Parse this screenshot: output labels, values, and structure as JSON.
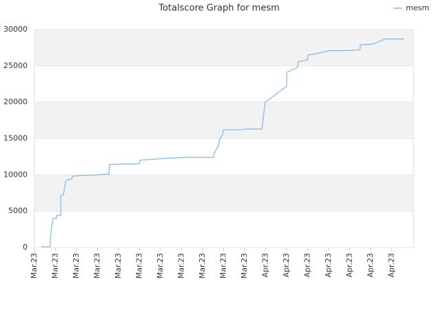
{
  "chart_data": {
    "type": "line",
    "title": "Totalscore Graph for mesm",
    "x": [
      0.33,
      0.75,
      0.75,
      0.82,
      0.89,
      1.05,
      1.05,
      1.25,
      1.25,
      1.38,
      1.48,
      1.54,
      1.77,
      1.8,
      2.13,
      2.95,
      3.54,
      3.57,
      4.26,
      4.98,
      5.02,
      5.41,
      5.9,
      6.56,
      7.21,
      8.52,
      8.56,
      8.75,
      8.82,
      8.95,
      8.98,
      9.9,
      9.97,
      10.82,
      10.89,
      10.98,
      12.0,
      12.0,
      12.52,
      12.56,
      12.98,
      13.02,
      13.44,
      14.03,
      14.75,
      15.48,
      15.51,
      16.1,
      16.59,
      16.62,
      17.54,
      17.57
    ],
    "series": [
      {
        "name": "mesm",
        "color": "#7cb5ec",
        "values": [
          100,
          100,
          1000,
          3000,
          4000,
          4000,
          4400,
          4400,
          7100,
          7300,
          9000,
          9300,
          9400,
          9800,
          9900,
          10000,
          10100,
          11400,
          11500,
          11500,
          12000,
          12100,
          12200,
          12300,
          12400,
          12400,
          13000,
          14000,
          15000,
          15500,
          16200,
          16200,
          16300,
          16300,
          18000,
          20000,
          22200,
          24100,
          24800,
          25600,
          25800,
          26500,
          26700,
          27100,
          27100,
          27200,
          27900,
          28000,
          28600,
          28700,
          28700,
          28800
        ]
      }
    ],
    "xlim": [
      0,
      18.03
    ],
    "xticks": [
      {
        "value": 0,
        "label": "Mar.23"
      },
      {
        "value": 1,
        "label": "Mar.23"
      },
      {
        "value": 2,
        "label": "Mar.23"
      },
      {
        "value": 3,
        "label": "Mar.23"
      },
      {
        "value": 4,
        "label": "Mar.23"
      },
      {
        "value": 5,
        "label": "Mar.23"
      },
      {
        "value": 6,
        "label": "Mar.23"
      },
      {
        "value": 7,
        "label": "Mar.23"
      },
      {
        "value": 8,
        "label": "Mar.23"
      },
      {
        "value": 9,
        "label": "Mar.23"
      },
      {
        "value": 10,
        "label": "Mar.23"
      },
      {
        "value": 11,
        "label": "Apr.23"
      },
      {
        "value": 12,
        "label": "Apr.23"
      },
      {
        "value": 13,
        "label": "Apr.23"
      },
      {
        "value": 14,
        "label": "Apr.23"
      },
      {
        "value": 15,
        "label": "Apr.23"
      },
      {
        "value": 16,
        "label": "Apr.23"
      },
      {
        "value": 17,
        "label": "Apr.23"
      }
    ],
    "ylim": [
      0,
      30000
    ],
    "yticks": [
      0,
      5000,
      10000,
      15000,
      20000,
      25000,
      30000
    ],
    "grid": true,
    "legend": "top-right"
  }
}
